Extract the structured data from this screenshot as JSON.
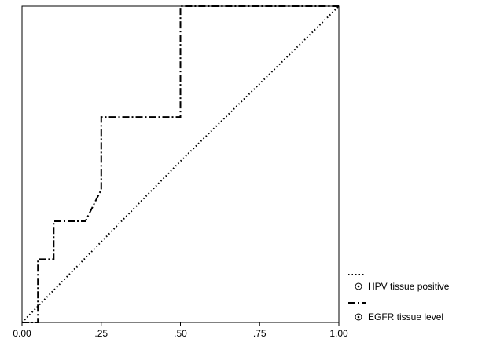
{
  "chart_data": {
    "type": "line",
    "title": "",
    "xlabel": "",
    "ylabel": "",
    "xlim": [
      0,
      1
    ],
    "ylim": [
      0,
      1
    ],
    "x_ticks": [
      0,
      0.25,
      0.5,
      0.75,
      1.0
    ],
    "x_tick_labels": [
      "0.00",
      ".25",
      ".50",
      ".75",
      "1.00"
    ],
    "grid": false,
    "legend_position": "bottom-right, outside plot",
    "series": [
      {
        "name": "HPV tissue positive",
        "line_style": "dotted",
        "color": "#000000",
        "x": [
          0,
          0.5,
          1
        ],
        "y": [
          0,
          0.51,
          1
        ]
      },
      {
        "name": "EGFR tissue level",
        "line_style": "dash-dot",
        "color": "#000000",
        "x": [
          0,
          0.05,
          0.05,
          0.1,
          0.1,
          0.2,
          0.25,
          0.25,
          0.5,
          0.5,
          1
        ],
        "y": [
          0,
          0,
          0.2,
          0.2,
          0.32,
          0.32,
          0.42,
          0.65,
          0.65,
          1,
          1
        ]
      }
    ]
  }
}
